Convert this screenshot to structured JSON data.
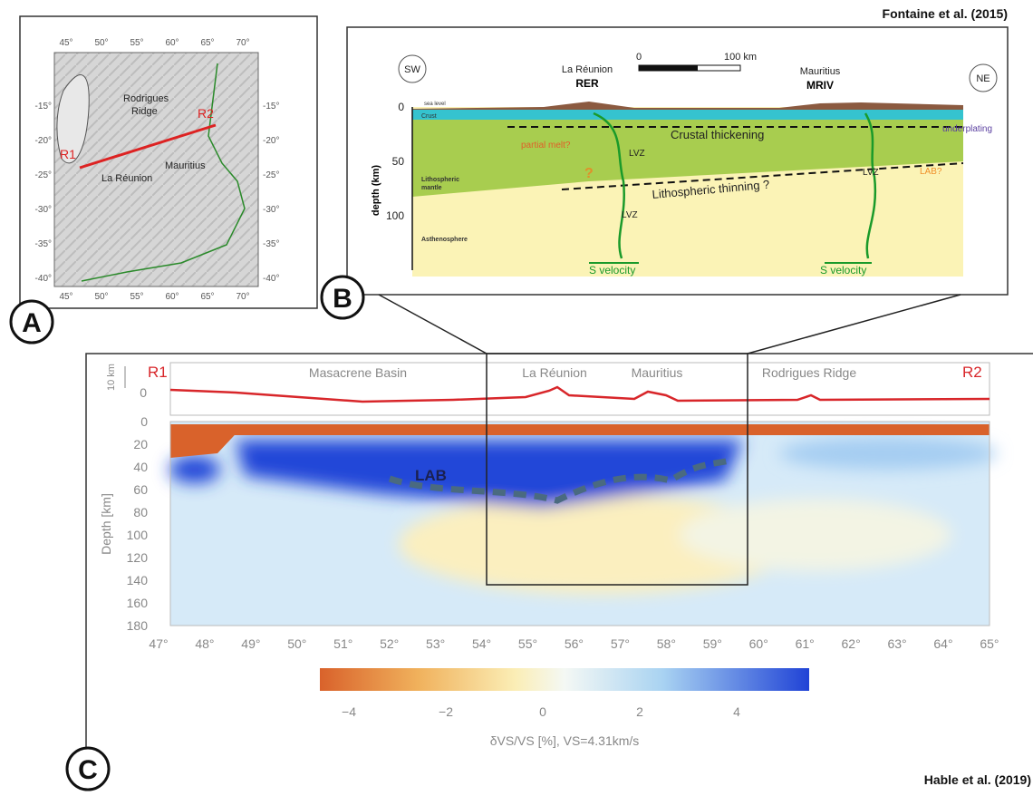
{
  "panel_a": {
    "label": "A",
    "top_ticks": [
      "45°",
      "50°",
      "55°",
      "60°",
      "65°",
      "70°"
    ],
    "bottom_ticks": [
      "45°",
      "50°",
      "55°",
      "60°",
      "65°",
      "70°"
    ],
    "left_ticks": [
      "-15°",
      "-20°",
      "-25°",
      "-30°",
      "-35°",
      "-40°"
    ],
    "right_ticks": [
      "-15°",
      "-20°",
      "-25°",
      "-30°",
      "-35°",
      "-40°"
    ],
    "rodrigues_1": "Rodrigues",
    "rodrigues_2": "Ridge",
    "r1": "R1",
    "r2": "R2",
    "mauritius": "Mauritius",
    "la_reunion": "La Réunion"
  },
  "panel_b": {
    "label": "B",
    "credit": "Fontaine et al. (2015)",
    "sw": "SW",
    "ne": "NE",
    "la_reunion": "La Réunion",
    "rer": "RER",
    "mauritius": "Mauritius",
    "mriv": "MRIV",
    "scale_start": "0",
    "scale_end": "100 km",
    "depth_label": "depth (km)",
    "depth_ticks": [
      "0",
      "50",
      "100"
    ],
    "sea_level": "sea level",
    "crust": "Crust",
    "litho_1": "Lithospheric",
    "litho_2": "mantle",
    "asthenosphere": "Asthenosphere",
    "partial_melt": "partial melt?",
    "question": "?",
    "lvz_1": "LVZ",
    "lvz_2": "LVZ",
    "lvz_3": "LVZ",
    "crustal_thickening": "Crustal thickening",
    "underplating": "underplating",
    "lab": "LAB?",
    "thinning": "Lithospheric thinning ?",
    "s_velocity_1": "S velocity",
    "s_velocity_2": "S velocity"
  },
  "panel_c": {
    "label": "C",
    "credit": "Hable et al. (2019)",
    "r1": "R1",
    "r2": "R2",
    "masacrene": "Masacrene Basin",
    "la_reunion": "La Réunion",
    "mauritius": "Mauritius",
    "rodrigues": "Rodrigues Ridge",
    "topo_scale": "10 km",
    "topo_zero": "0",
    "depth_label": "Depth [km]",
    "depth_ticks": [
      "0",
      "20",
      "40",
      "60",
      "80",
      "100",
      "120",
      "140",
      "160",
      "180"
    ],
    "lon_ticks": [
      "47°",
      "48°",
      "49°",
      "50°",
      "51°",
      "52°",
      "53°",
      "54°",
      "55°",
      "56°",
      "57°",
      "58°",
      "59°",
      "60°",
      "61°",
      "62°",
      "63°",
      "64°",
      "65°"
    ],
    "lab": "LAB",
    "colorbar_ticks": [
      "−4",
      "−2",
      "0",
      "2",
      "4"
    ],
    "colorbar_label": "δVS/VS [%], VS=4.31km/s"
  }
}
